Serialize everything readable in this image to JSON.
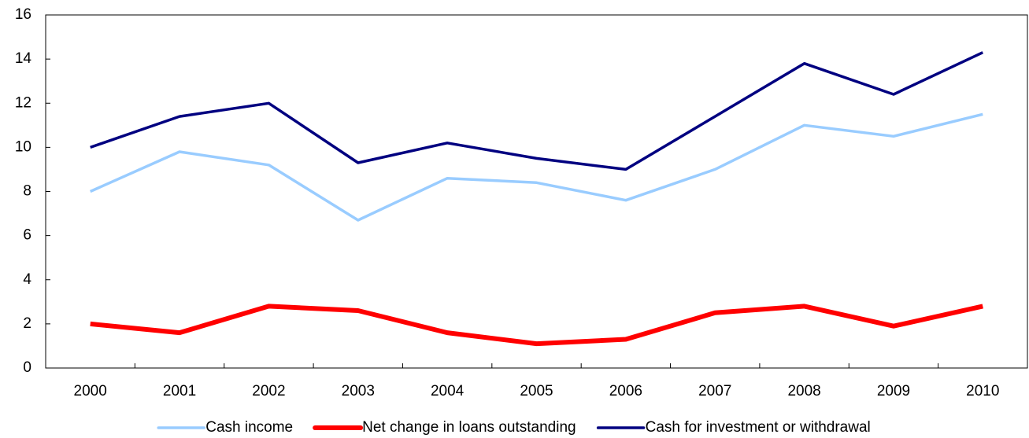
{
  "chart_data": {
    "type": "line",
    "categories": [
      "2000",
      "2001",
      "2002",
      "2003",
      "2004",
      "2005",
      "2006",
      "2007",
      "2008",
      "2009",
      "2010"
    ],
    "series": [
      {
        "name": "Cash income",
        "color": "#99ccff",
        "values": [
          8.0,
          9.8,
          9.2,
          6.7,
          8.6,
          8.4,
          7.6,
          9.0,
          11.0,
          10.5,
          11.5
        ]
      },
      {
        "name": "Net change in loans outstanding",
        "color": "#ff0000",
        "values": [
          2.0,
          1.6,
          2.8,
          2.6,
          1.6,
          1.1,
          1.3,
          2.5,
          2.8,
          1.9,
          2.8
        ]
      },
      {
        "name": "Cash for investment or withdrawal",
        "color": "#000080",
        "values": [
          10.0,
          11.4,
          12.0,
          9.3,
          10.2,
          9.5,
          9.0,
          11.4,
          13.8,
          12.4,
          14.3
        ]
      }
    ],
    "ylim": [
      0,
      16
    ],
    "yticks": [
      0,
      2,
      4,
      6,
      8,
      10,
      12,
      14,
      16
    ],
    "legend": "bottom"
  }
}
